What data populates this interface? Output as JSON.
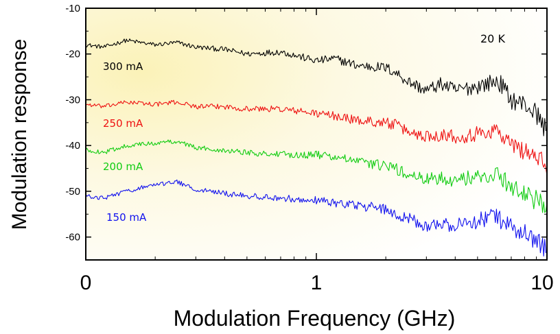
{
  "chart_data": {
    "type": "line",
    "title": "",
    "xlabel": "Modulation Frequency  (GHz)",
    "ylabel": "Modulation response",
    "x_scale": "log",
    "x_ticks": [
      "0",
      "1",
      "10"
    ],
    "xlim": [
      0.1,
      10
    ],
    "ylim": [
      -65,
      -10
    ],
    "y_ticks": [
      -10,
      -20,
      -30,
      -40,
      -50,
      -60
    ],
    "grid": false,
    "annotation": "20 K",
    "series": [
      {
        "name": "300 mA",
        "color": "#000000",
        "x": [
          0.1,
          0.12,
          0.15,
          0.2,
          0.25,
          0.3,
          0.4,
          0.5,
          0.7,
          1.0,
          1.2,
          1.5,
          2.0,
          2.2,
          2.5,
          3.0,
          3.5,
          4.0,
          5.0,
          6.0,
          6.3,
          7.0,
          8.0,
          9.0,
          10.0
        ],
        "values": [
          -18,
          -18.5,
          -17,
          -18,
          -17.5,
          -18.5,
          -19,
          -20,
          -19.5,
          -21.5,
          -21,
          -22.5,
          -23,
          -24,
          -26,
          -28,
          -26.5,
          -28,
          -27,
          -26,
          -26.5,
          -30,
          -31,
          -33,
          -37
        ]
      },
      {
        "name": "250 mA",
        "color": "#ee1111",
        "x": [
          0.1,
          0.12,
          0.15,
          0.2,
          0.25,
          0.3,
          0.4,
          0.5,
          0.7,
          1.0,
          1.2,
          1.5,
          2.0,
          2.2,
          2.5,
          3.0,
          3.5,
          4.0,
          5.0,
          6.0,
          6.3,
          7.0,
          8.0,
          9.0,
          10.0
        ],
        "values": [
          -31,
          -31.5,
          -30.5,
          -31,
          -30.5,
          -31.5,
          -31.5,
          -32,
          -32,
          -33,
          -33.5,
          -34.5,
          -35,
          -35.5,
          -37,
          -38,
          -37.5,
          -38,
          -37.5,
          -36.5,
          -37.5,
          -40,
          -41,
          -42.5,
          -45
        ]
      },
      {
        "name": "200 mA",
        "color": "#11cc11",
        "x": [
          0.1,
          0.12,
          0.15,
          0.2,
          0.25,
          0.3,
          0.4,
          0.5,
          0.7,
          1.0,
          1.2,
          1.5,
          2.0,
          2.2,
          2.5,
          3.0,
          3.5,
          4.0,
          5.0,
          6.0,
          6.3,
          7.0,
          8.0,
          9.0,
          10.0
        ],
        "values": [
          -41,
          -41.5,
          -40,
          -39.5,
          -39,
          -40.5,
          -41,
          -41.5,
          -42,
          -42,
          -42.5,
          -43.5,
          -44.5,
          -45,
          -46.5,
          -47.5,
          -47,
          -47.5,
          -47,
          -46,
          -47,
          -49,
          -50.5,
          -52,
          -54
        ]
      },
      {
        "name": "150 mA",
        "color": "#1111ee",
        "x": [
          0.1,
          0.12,
          0.15,
          0.2,
          0.25,
          0.3,
          0.4,
          0.5,
          0.7,
          1.0,
          1.2,
          1.5,
          2.0,
          2.2,
          2.5,
          3.0,
          3.5,
          4.0,
          5.0,
          6.0,
          6.3,
          7.0,
          8.0,
          9.0,
          10.0
        ],
        "values": [
          -51,
          -51.5,
          -50,
          -48.5,
          -48,
          -49.5,
          -50.5,
          -51,
          -51.5,
          -52,
          -52.5,
          -53,
          -54,
          -55,
          -56,
          -57.5,
          -57,
          -57.5,
          -56.5,
          -55,
          -56.5,
          -58,
          -59,
          -60.5,
          -63
        ]
      }
    ]
  }
}
